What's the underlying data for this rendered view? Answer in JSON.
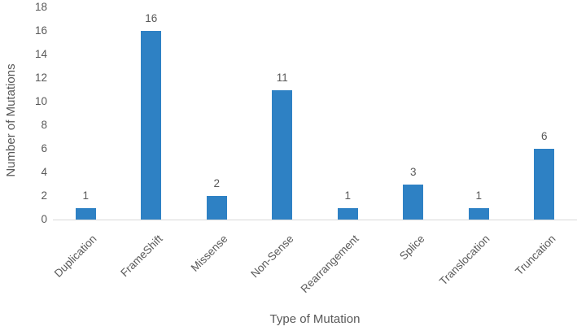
{
  "chart_data": {
    "type": "bar",
    "categories": [
      "Duplication",
      "FrameShift",
      "Missense",
      "Non-Sense",
      "Rearrangement",
      "Splice",
      "Translocation",
      "Truncation"
    ],
    "values": [
      1,
      16,
      2,
      11,
      1,
      3,
      1,
      6
    ],
    "xlabel": "Type of Mutation",
    "ylabel": "Number of Mutations",
    "ylim": [
      0,
      18
    ],
    "ytick_step": 2,
    "show_data_labels": true,
    "grid": false,
    "legend": false,
    "bar_color": "#2e81c4",
    "text_color": "#595959",
    "axis_line_color": "#d9d9d9"
  }
}
